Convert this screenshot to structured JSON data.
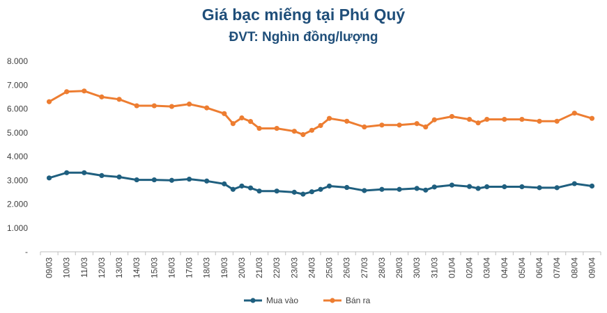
{
  "chart_data": {
    "type": "line",
    "title": "Giá bạc miếng tại Phú Quý",
    "subtitle": "ĐVT: Nghìn đồng/lượng",
    "xlabel": "",
    "ylabel": "",
    "ylim": [
      0,
      8000
    ],
    "y_ticks": [
      {
        "value": 0,
        "label": "-"
      },
      {
        "value": 1000,
        "label": "1.000"
      },
      {
        "value": 2000,
        "label": "2.000"
      },
      {
        "value": 3000,
        "label": "3.000"
      },
      {
        "value": 4000,
        "label": "4.000"
      },
      {
        "value": 5000,
        "label": "5.000"
      },
      {
        "value": 6000,
        "label": "6.000"
      },
      {
        "value": 7000,
        "label": "7.000"
      },
      {
        "value": 8000,
        "label": "8.000"
      }
    ],
    "grid": false,
    "legend_position": "bottom",
    "categories": [
      "09/03",
      "10/03",
      "11/03",
      "12/03",
      "13/03",
      "14/03",
      "15/03",
      "16/03",
      "17/03",
      "18/03",
      "19/03",
      "20/03",
      "21/03",
      "22/03",
      "23/03",
      "24/03",
      "25/03",
      "26/03",
      "27/03",
      "28/03",
      "29/03",
      "30/03",
      "31/03",
      "01/04",
      "02/04",
      "03/04",
      "04/04",
      "05/04",
      "06/04",
      "07/04",
      "08/04",
      "09/04"
    ],
    "series": [
      {
        "name": "Mua vào",
        "color": "#1f5f7f",
        "points": [
          {
            "date": "09/03",
            "value": 3100
          },
          {
            "date": "10/03",
            "value": 3320
          },
          {
            "date": "11/03",
            "value": 3320
          },
          {
            "date": "12/03",
            "value": 3200
          },
          {
            "date": "13/03",
            "value": 3140
          },
          {
            "date": "14/03",
            "value": 3020
          },
          {
            "date": "15/03",
            "value": 3020
          },
          {
            "date": "16/03",
            "value": 3000
          },
          {
            "date": "17/03",
            "value": 3050
          },
          {
            "date": "18/03",
            "value": 2970
          },
          {
            "date": "19/03",
            "value": 2850
          },
          {
            "date": "19/03",
            "value": 2620
          },
          {
            "date": "20/03",
            "value": 2760
          },
          {
            "date": "20/03",
            "value": 2680
          },
          {
            "date": "21/03",
            "value": 2550
          },
          {
            "date": "22/03",
            "value": 2550
          },
          {
            "date": "23/03",
            "value": 2500
          },
          {
            "date": "23/03",
            "value": 2420
          },
          {
            "date": "24/03",
            "value": 2520
          },
          {
            "date": "24/03",
            "value": 2620
          },
          {
            "date": "25/03",
            "value": 2760
          },
          {
            "date": "26/03",
            "value": 2700
          },
          {
            "date": "27/03",
            "value": 2570
          },
          {
            "date": "28/03",
            "value": 2620
          },
          {
            "date": "29/03",
            "value": 2620
          },
          {
            "date": "30/03",
            "value": 2660
          },
          {
            "date": "30/03",
            "value": 2590
          },
          {
            "date": "31/03",
            "value": 2720
          },
          {
            "date": "01/04",
            "value": 2800
          },
          {
            "date": "02/04",
            "value": 2740
          },
          {
            "date": "02/04",
            "value": 2660
          },
          {
            "date": "03/04",
            "value": 2730
          },
          {
            "date": "04/04",
            "value": 2730
          },
          {
            "date": "05/04",
            "value": 2730
          },
          {
            "date": "06/04",
            "value": 2690
          },
          {
            "date": "07/04",
            "value": 2690
          },
          {
            "date": "08/04",
            "value": 2860
          },
          {
            "date": "09/04",
            "value": 2760
          }
        ]
      },
      {
        "name": "Bán ra",
        "color": "#ed7d31",
        "points": [
          {
            "date": "09/03",
            "value": 6300
          },
          {
            "date": "10/03",
            "value": 6720
          },
          {
            "date": "11/03",
            "value": 6750
          },
          {
            "date": "12/03",
            "value": 6500
          },
          {
            "date": "13/03",
            "value": 6400
          },
          {
            "date": "14/03",
            "value": 6130
          },
          {
            "date": "15/03",
            "value": 6130
          },
          {
            "date": "16/03",
            "value": 6100
          },
          {
            "date": "17/03",
            "value": 6200
          },
          {
            "date": "18/03",
            "value": 6040
          },
          {
            "date": "19/03",
            "value": 5800
          },
          {
            "date": "19/03",
            "value": 5380
          },
          {
            "date": "20/03",
            "value": 5620
          },
          {
            "date": "20/03",
            "value": 5470
          },
          {
            "date": "21/03",
            "value": 5180
          },
          {
            "date": "22/03",
            "value": 5180
          },
          {
            "date": "23/03",
            "value": 5060
          },
          {
            "date": "23/03",
            "value": 4920
          },
          {
            "date": "24/03",
            "value": 5100
          },
          {
            "date": "24/03",
            "value": 5300
          },
          {
            "date": "25/03",
            "value": 5600
          },
          {
            "date": "26/03",
            "value": 5480
          },
          {
            "date": "27/03",
            "value": 5240
          },
          {
            "date": "28/03",
            "value": 5320
          },
          {
            "date": "29/03",
            "value": 5320
          },
          {
            "date": "30/03",
            "value": 5380
          },
          {
            "date": "30/03",
            "value": 5240
          },
          {
            "date": "31/03",
            "value": 5540
          },
          {
            "date": "01/04",
            "value": 5680
          },
          {
            "date": "02/04",
            "value": 5560
          },
          {
            "date": "02/04",
            "value": 5410
          },
          {
            "date": "03/04",
            "value": 5560
          },
          {
            "date": "04/04",
            "value": 5560
          },
          {
            "date": "05/04",
            "value": 5560
          },
          {
            "date": "06/04",
            "value": 5480
          },
          {
            "date": "07/04",
            "value": 5480
          },
          {
            "date": "08/04",
            "value": 5820
          },
          {
            "date": "09/04",
            "value": 5600
          }
        ]
      }
    ]
  }
}
